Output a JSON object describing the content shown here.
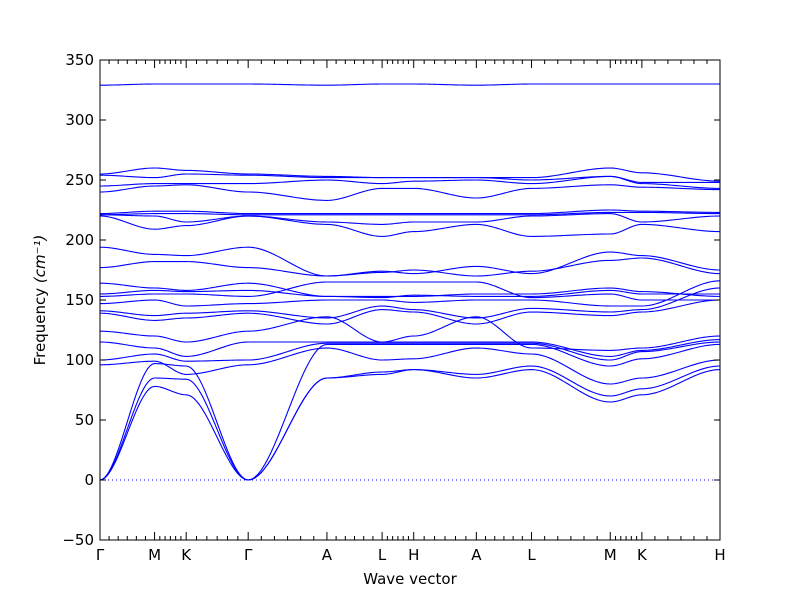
{
  "chart_data": {
    "type": "line",
    "xlabel": "Wave vector",
    "ylabel": "Frequency",
    "ylabel_unit": "(cm⁻¹)",
    "ylim": [
      -50,
      350
    ],
    "yticks": [
      -50,
      0,
      50,
      100,
      150,
      200,
      250,
      300,
      350
    ],
    "xlim": [
      0,
      100
    ],
    "kpoints": [
      {
        "label": "Γ",
        "x": 0
      },
      {
        "label": "M",
        "x": 8.8
      },
      {
        "label": "K",
        "x": 13.9
      },
      {
        "label": "Γ",
        "x": 23.9
      },
      {
        "label": "A",
        "x": 36.6
      },
      {
        "label": "L",
        "x": 45.5
      },
      {
        "label": "H",
        "x": 50.6
      },
      {
        "label": "A",
        "x": 60.7
      },
      {
        "label": "L",
        "x": 69.6
      },
      {
        "label": "M",
        "x": 82.3
      },
      {
        "label": "K",
        "x": 87.4
      },
      {
        "label": "H",
        "x": 100
      }
    ],
    "zero_line": {
      "y": 0,
      "style": "dotted"
    },
    "color": "#0000ff",
    "series": [
      {
        "values": [
          0,
          78,
          71,
          0,
          85,
          88,
          92,
          85,
          92,
          65,
          71,
          92
        ]
      },
      {
        "values": [
          0,
          85,
          84,
          0,
          85,
          90,
          92,
          88,
          95,
          70,
          76,
          95
        ]
      },
      {
        "values": [
          0,
          97,
          95,
          0,
          113,
          113,
          113,
          113,
          113,
          95,
          101,
          113
        ]
      },
      {
        "values": [
          96,
          99,
          88,
          96,
          110,
          100,
          101,
          110,
          105,
          80,
          85,
          100
        ]
      },
      {
        "values": [
          100,
          105,
          99,
          100,
          114,
          114,
          114,
          114,
          114,
          100,
          107,
          115
        ]
      },
      {
        "values": [
          115,
          110,
          103,
          115,
          115,
          115,
          115,
          115,
          115,
          103,
          108,
          117
        ]
      },
      {
        "values": [
          124,
          120,
          115,
          124,
          136,
          115,
          120,
          136,
          110,
          108,
          110,
          120
        ]
      },
      {
        "values": [
          139,
          133,
          135,
          139,
          130,
          142,
          140,
          130,
          140,
          137,
          140,
          150
        ]
      },
      {
        "values": [
          141,
          137,
          139,
          141,
          135,
          145,
          142,
          135,
          143,
          140,
          142,
          160
        ]
      },
      {
        "values": [
          147,
          150,
          145,
          147,
          150,
          150,
          148,
          150,
          150,
          145,
          145,
          166
        ]
      },
      {
        "values": [
          153,
          155,
          155,
          153,
          165,
          165,
          165,
          165,
          152,
          155,
          150,
          150
        ]
      },
      {
        "values": [
          155,
          158,
          157,
          158,
          153,
          152,
          154,
          153,
          153,
          158,
          155,
          155
        ]
      },
      {
        "values": [
          164,
          160,
          158,
          164,
          153,
          153,
          153,
          155,
          155,
          160,
          157,
          153
        ]
      },
      {
        "values": [
          177,
          182,
          182,
          177,
          170,
          173,
          175,
          170,
          174,
          183,
          185,
          172
        ]
      },
      {
        "values": [
          194,
          188,
          187,
          194,
          170,
          174,
          172,
          178,
          172,
          190,
          187,
          175
        ]
      },
      {
        "values": [
          220,
          209,
          212,
          220,
          213,
          203,
          207,
          213,
          203,
          205,
          213,
          207
        ]
      },
      {
        "values": [
          221,
          220,
          215,
          220,
          215,
          213,
          215,
          215,
          220,
          222,
          215,
          220
        ]
      },
      {
        "values": [
          221,
          222,
          222,
          221,
          221,
          221,
          221,
          221,
          221,
          223,
          223,
          222
        ]
      },
      {
        "values": [
          222,
          224,
          224,
          222,
          222,
          222,
          222,
          222,
          222,
          225,
          224,
          223
        ]
      },
      {
        "values": [
          240,
          245,
          246,
          240,
          233,
          243,
          243,
          235,
          243,
          246,
          244,
          242
        ]
      },
      {
        "values": [
          245,
          247,
          247,
          247,
          250,
          247,
          249,
          250,
          247,
          253,
          247,
          243
        ]
      },
      {
        "values": [
          254,
          252,
          255,
          254,
          252,
          252,
          252,
          252,
          250,
          253,
          248,
          248
        ]
      },
      {
        "values": [
          255,
          260,
          258,
          255,
          253,
          252,
          252,
          252,
          252,
          260,
          256,
          249
        ]
      },
      {
        "values": [
          329,
          330,
          330,
          330,
          329,
          330,
          330,
          329,
          330,
          330,
          330,
          330
        ]
      }
    ]
  }
}
